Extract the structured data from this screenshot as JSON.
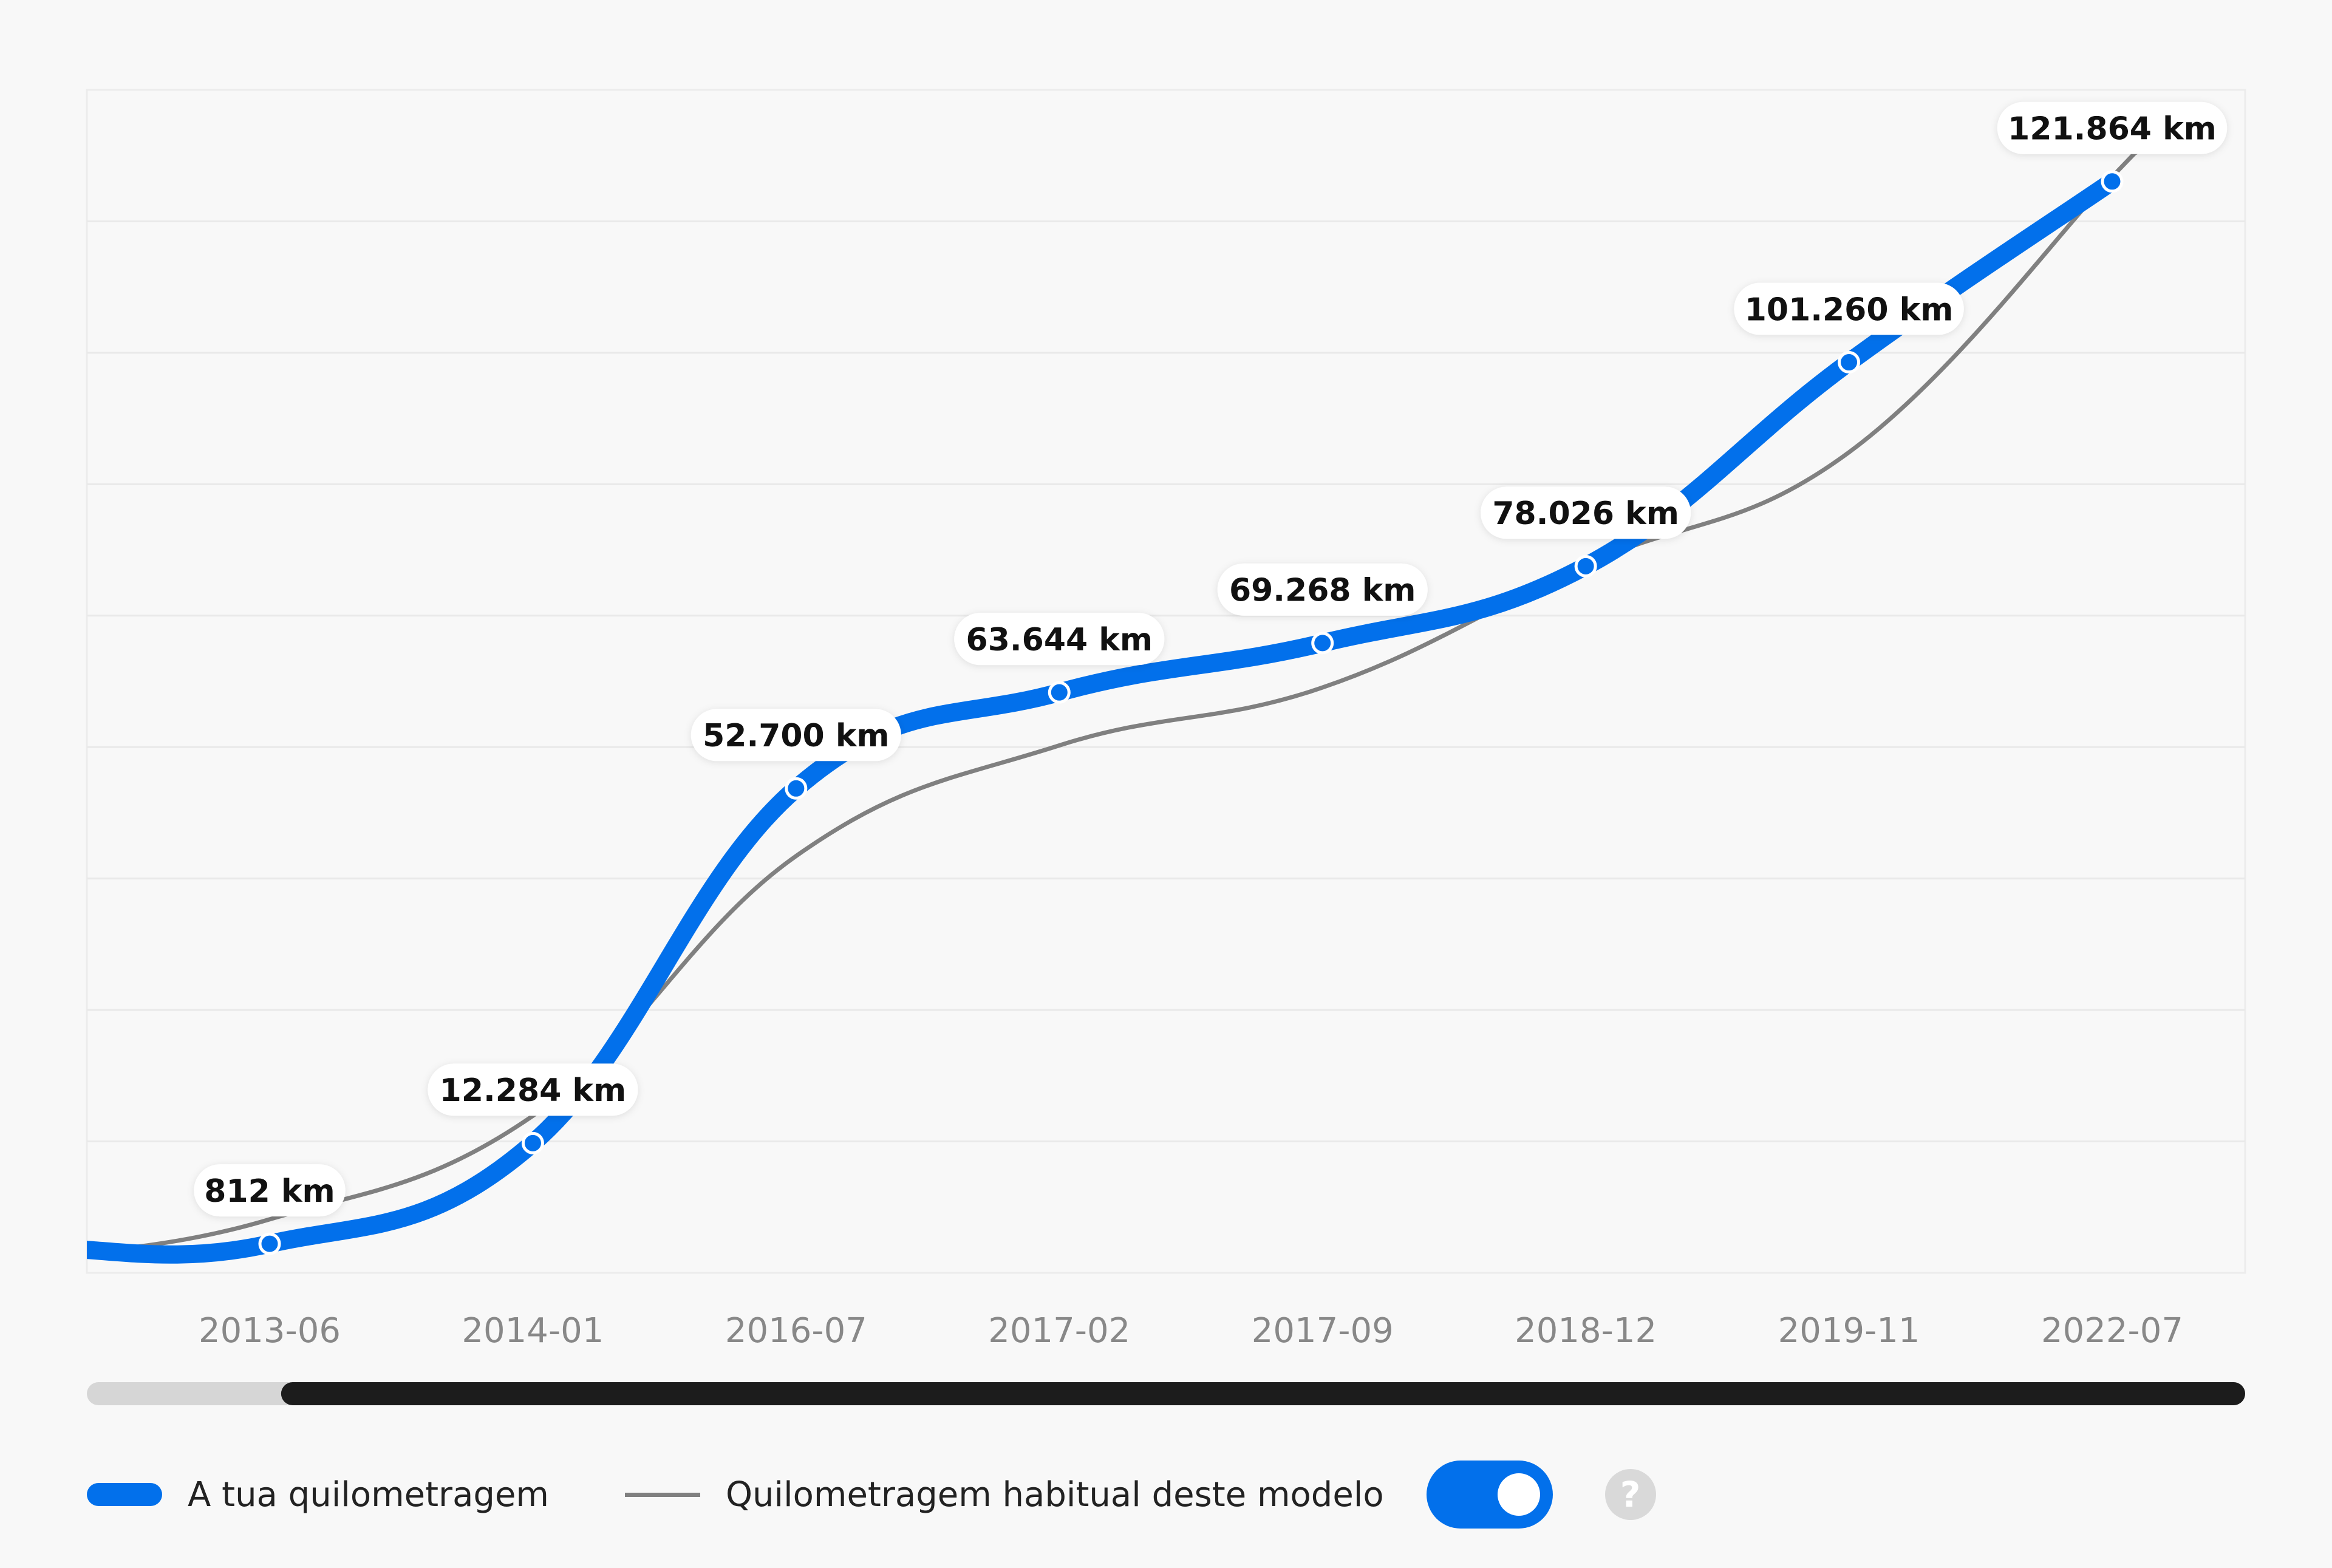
{
  "chart_data": {
    "type": "line",
    "categories": [
      "2013-06",
      "2014-01",
      "2016-07",
      "2017-02",
      "2017-09",
      "2018-12",
      "2019-11",
      "2022-07"
    ],
    "series": [
      {
        "name": "A tua quilometragem",
        "color": "#0270eb",
        "values": [
          812,
          12284,
          52700,
          63644,
          69268,
          78026,
          101260,
          121864
        ],
        "labels": [
          "812 km",
          "12.284 km",
          "52.700 km",
          "63.644 km",
          "69.268 km",
          "78.026 km",
          "101.260 km",
          "121.864 km"
        ]
      },
      {
        "name": "Quilometragem habitual deste modelo",
        "color": "#808080",
        "values": [
          3600,
          15400,
          45000,
          57600,
          64200,
          78200,
          91000,
          122400
        ]
      }
    ],
    "ylim": [
      -2500,
      132300
    ],
    "grid": true,
    "legend_position": "bottom-left"
  },
  "legend": {
    "own_label": "A tua quilometragem",
    "model_label": "Quilometragem habitual deste modelo",
    "help_glyph": "?"
  },
  "toggle": {
    "on": true
  },
  "scrollbar": {
    "visible_start": 0.09,
    "visible_end": 1.0
  }
}
